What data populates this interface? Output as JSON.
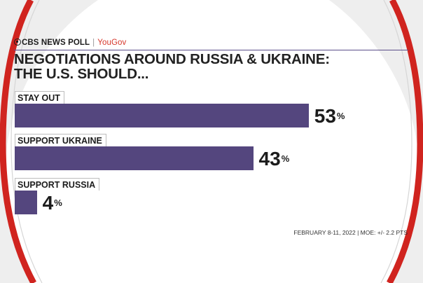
{
  "header": {
    "network": "CBS NEWS POLL",
    "separator": "|",
    "partner": "YouGov"
  },
  "title_lines": [
    "NEGOTIATIONS AROUND RUSSIA & UKRAINE:",
    "THE U.S. SHOULD..."
  ],
  "footnote": "FEBRUARY 8-11, 2022  |  MOE: +/- 2.2 PTS",
  "colors": {
    "bar": "#54467e",
    "frame_red": "#d0241f",
    "accent": "#d6372b",
    "rule": "#5c4e8a"
  },
  "chart_data": {
    "type": "bar",
    "orientation": "horizontal",
    "title": "NEGOTIATIONS AROUND RUSSIA & UKRAINE: THE U.S. SHOULD...",
    "categories": [
      "STAY OUT",
      "SUPPORT UKRAINE",
      "SUPPORT RUSSIA"
    ],
    "values": [
      53,
      43,
      4
    ],
    "value_labels": [
      "53",
      "43",
      "4"
    ],
    "unit": "%",
    "xlim": [
      0,
      100
    ],
    "grid": false,
    "legend": "none"
  }
}
